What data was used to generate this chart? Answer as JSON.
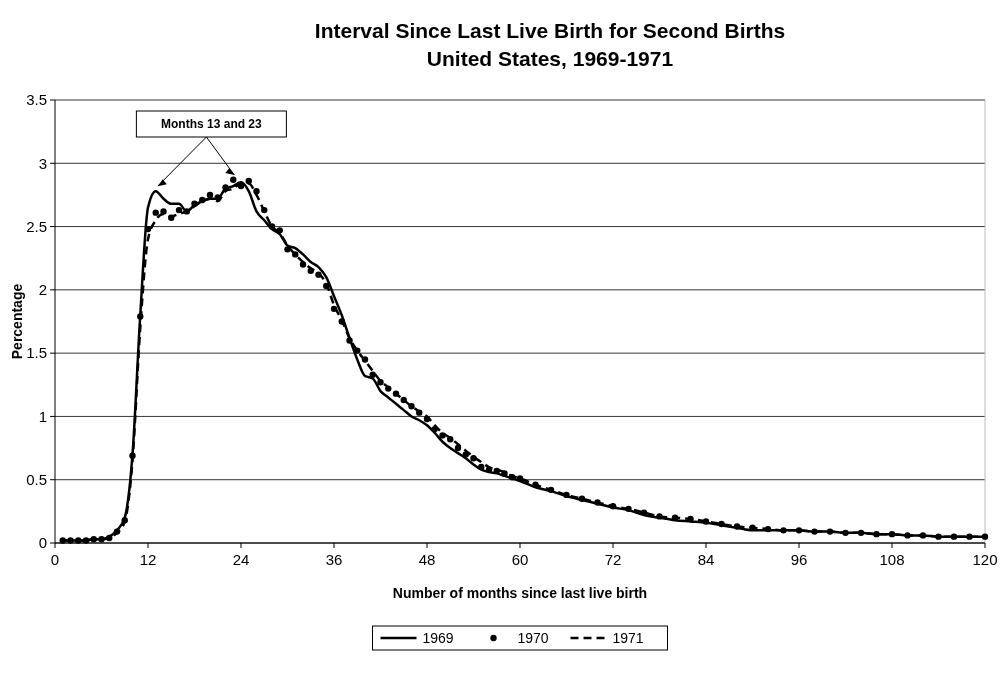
{
  "chart_data": {
    "type": "line",
    "title": "Interval Since Last Live Birth for Second Births",
    "subtitle": "United States, 1969-1971",
    "xlabel": "Number of months since last live birth",
    "ylabel": "Percentage",
    "annotations": [
      {
        "text": "Months 13 and 23",
        "x": 13,
        "y": 2.78
      }
    ],
    "x": [
      1,
      2,
      3,
      4,
      5,
      6,
      7,
      8,
      9,
      10,
      11,
      12,
      13,
      14,
      15,
      16,
      17,
      18,
      19,
      20,
      21,
      22,
      23,
      24,
      25,
      26,
      27,
      28,
      29,
      30,
      31,
      32,
      33,
      34,
      35,
      36,
      37,
      38,
      39,
      40,
      41,
      42,
      43,
      44,
      45,
      46,
      47,
      48,
      49,
      50,
      51,
      52,
      53,
      54,
      55,
      56,
      57,
      58,
      59,
      60,
      62,
      64,
      66,
      68,
      70,
      72,
      74,
      76,
      78,
      80,
      82,
      84,
      86,
      88,
      90,
      92,
      94,
      96,
      98,
      100,
      102,
      104,
      106,
      108,
      110,
      112,
      114,
      116,
      118,
      120
    ],
    "series": [
      {
        "name": "1969",
        "line_style": "solid",
        "color": "#000000",
        "values": [
          0.02,
          0.02,
          0.02,
          0.02,
          0.03,
          0.03,
          0.05,
          0.1,
          0.2,
          0.7,
          1.8,
          2.65,
          2.78,
          2.72,
          2.68,
          2.68,
          2.62,
          2.67,
          2.7,
          2.72,
          2.72,
          2.8,
          2.82,
          2.85,
          2.78,
          2.62,
          2.55,
          2.48,
          2.44,
          2.35,
          2.33,
          2.28,
          2.22,
          2.18,
          2.1,
          1.95,
          1.8,
          1.62,
          1.45,
          1.32,
          1.3,
          1.2,
          1.15,
          1.1,
          1.05,
          1.0,
          0.97,
          0.93,
          0.87,
          0.8,
          0.75,
          0.71,
          0.67,
          0.62,
          0.58,
          0.56,
          0.55,
          0.53,
          0.51,
          0.49,
          0.44,
          0.41,
          0.37,
          0.34,
          0.31,
          0.28,
          0.26,
          0.22,
          0.2,
          0.18,
          0.17,
          0.16,
          0.14,
          0.12,
          0.1,
          0.1,
          0.1,
          0.1,
          0.09,
          0.09,
          0.08,
          0.08,
          0.07,
          0.07,
          0.06,
          0.06,
          0.05,
          0.05,
          0.05,
          0.05
        ]
      },
      {
        "name": "1970",
        "type": "scatter",
        "marker": "circle",
        "color": "#000000",
        "values": [
          0.02,
          0.02,
          0.02,
          0.02,
          0.03,
          0.03,
          0.04,
          0.09,
          0.18,
          0.69,
          1.79,
          2.48,
          2.61,
          2.62,
          2.57,
          2.63,
          2.62,
          2.68,
          2.71,
          2.75,
          2.73,
          2.81,
          2.87,
          2.82,
          2.86,
          2.78,
          2.63,
          2.5,
          2.47,
          2.32,
          2.28,
          2.2,
          2.15,
          2.12,
          2.03,
          1.85,
          1.75,
          1.6,
          1.52,
          1.45,
          1.33,
          1.27,
          1.22,
          1.18,
          1.13,
          1.08,
          1.03,
          0.98,
          0.9,
          0.85,
          0.82,
          0.75,
          0.7,
          0.67,
          0.6,
          0.58,
          0.57,
          0.55,
          0.52,
          0.51,
          0.46,
          0.42,
          0.38,
          0.35,
          0.32,
          0.29,
          0.27,
          0.24,
          0.21,
          0.2,
          0.19,
          0.17,
          0.15,
          0.13,
          0.12,
          0.11,
          0.1,
          0.1,
          0.09,
          0.09,
          0.08,
          0.08,
          0.07,
          0.07,
          0.06,
          0.06,
          0.05,
          0.05,
          0.05,
          0.05
        ]
      },
      {
        "name": "1971",
        "line_style": "dashed",
        "color": "#000000",
        "values": [
          0.02,
          0.02,
          0.02,
          0.02,
          0.03,
          0.03,
          0.04,
          0.08,
          0.17,
          0.65,
          1.7,
          2.4,
          2.55,
          2.6,
          2.58,
          2.6,
          2.62,
          2.66,
          2.7,
          2.72,
          2.7,
          2.78,
          2.8,
          2.84,
          2.84,
          2.75,
          2.62,
          2.5,
          2.45,
          2.35,
          2.28,
          2.22,
          2.17,
          2.13,
          2.05,
          1.88,
          1.76,
          1.62,
          1.52,
          1.44,
          1.36,
          1.28,
          1.23,
          1.18,
          1.13,
          1.08,
          1.04,
          1.0,
          0.93,
          0.87,
          0.83,
          0.78,
          0.73,
          0.68,
          0.64,
          0.6,
          0.58,
          0.56,
          0.53,
          0.51,
          0.46,
          0.42,
          0.38,
          0.35,
          0.32,
          0.29,
          0.27,
          0.24,
          0.21,
          0.2,
          0.19,
          0.17,
          0.15,
          0.13,
          0.12,
          0.11,
          0.1,
          0.1,
          0.09,
          0.09,
          0.08,
          0.08,
          0.07,
          0.07,
          0.06,
          0.06,
          0.05,
          0.05,
          0.05,
          0.05
        ]
      }
    ],
    "xlim": [
      0,
      120
    ],
    "xticks": [
      0,
      12,
      24,
      36,
      48,
      60,
      72,
      84,
      96,
      108,
      120
    ],
    "ylim": [
      0,
      3.5
    ],
    "yticks": [
      0,
      {
        "value": 0.5,
        "label": "0.5"
      },
      1,
      {
        "value": 1.5,
        "label": "1.5"
      },
      2,
      {
        "value": 2.5,
        "label": "2.5"
      },
      3,
      {
        "value": 3.5,
        "label": "3.5"
      }
    ],
    "grid": "y",
    "legend": "bottom"
  }
}
